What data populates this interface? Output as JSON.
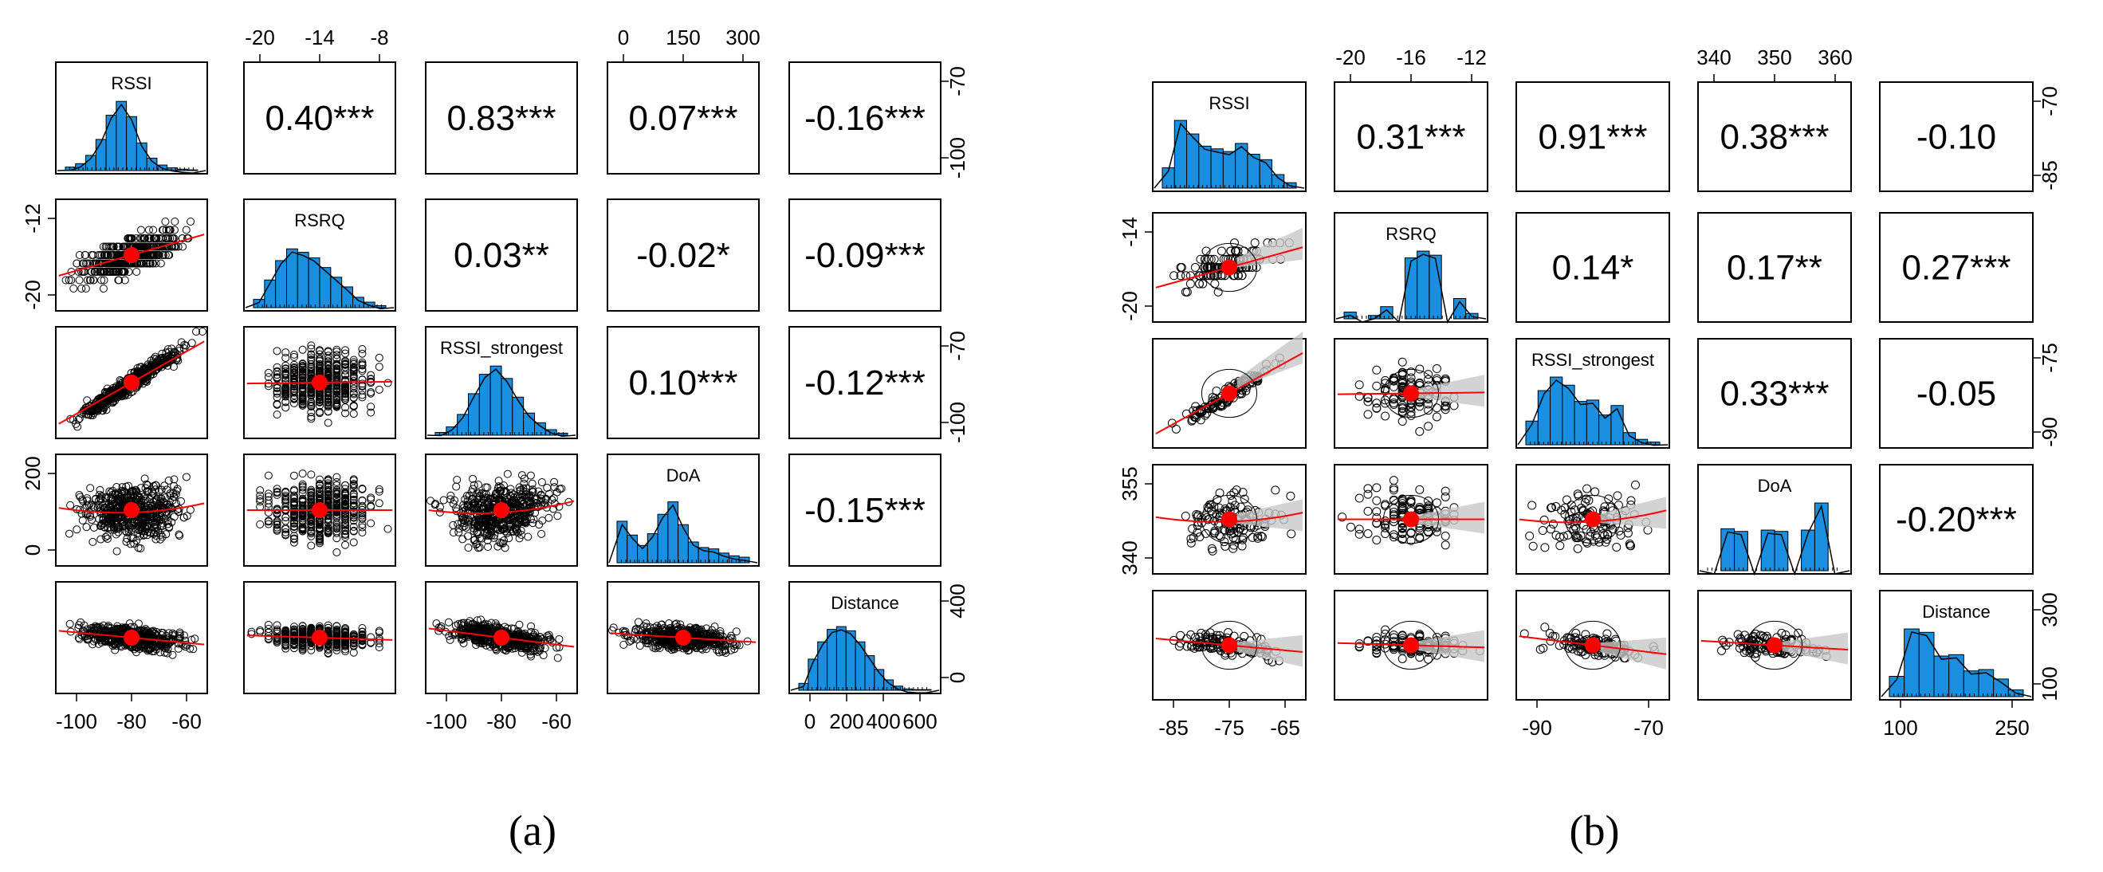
{
  "figures": [
    {
      "label": "(a)",
      "variables": [
        "RSSI",
        "RSRQ",
        "RSSI_strongest",
        "DoA",
        "Distance"
      ],
      "correlations": [
        [
          "0.40***",
          "0.83***",
          "0.07***",
          "-0.16***"
        ],
        [
          "0.03**",
          "-0.02*",
          "-0.09***"
        ],
        [
          "0.10***",
          "-0.12***"
        ],
        [
          "-0.15***"
        ]
      ],
      "axes": {
        "bottom": {
          "RSSI": [
            "-100",
            "-80",
            "-60"
          ],
          "RSSI_strongest": [
            "-100",
            "-80",
            "-60"
          ],
          "Distance": [
            "0",
            "200",
            "400",
            "600"
          ]
        },
        "top": {
          "RSRQ": [
            "-20",
            "-14",
            "-8"
          ],
          "DoA": [
            "0",
            "150",
            "300"
          ]
        },
        "left": {
          "RSRQ": [
            "-20",
            "-12"
          ],
          "DoA": [
            "0",
            "200"
          ]
        },
        "right": {
          "RSSI": [
            "-100",
            "-70"
          ],
          "RSSI_strongest": [
            "-100",
            "-70"
          ],
          "Distance": [
            "0",
            "400"
          ]
        }
      }
    },
    {
      "label": "(b)",
      "variables": [
        "RSSI",
        "RSRQ",
        "RSSI_strongest",
        "DoA",
        "Distance"
      ],
      "correlations": [
        [
          "0.31***",
          "0.91***",
          "0.38***",
          "-0.10"
        ],
        [
          "0.14*",
          "0.17**",
          "0.27***"
        ],
        [
          "0.33***",
          "-0.05"
        ],
        [
          "-0.20***"
        ]
      ],
      "axes": {
        "bottom": {
          "RSSI": [
            "-85",
            "-75",
            "-65"
          ],
          "RSSI_strongest": [
            "-90",
            "-70"
          ],
          "Distance": [
            "100",
            "250"
          ]
        },
        "top": {
          "RSRQ": [
            "-20",
            "-16",
            "-12"
          ],
          "DoA": [
            "340",
            "350",
            "360"
          ]
        },
        "left": {
          "RSRQ": [
            "-20",
            "-14"
          ],
          "DoA": [
            "340",
            "355"
          ]
        },
        "right": {
          "RSSI": [
            "-85",
            "-70"
          ],
          "RSSI_strongest": [
            "-90",
            "-75"
          ],
          "Distance": [
            "100",
            "300"
          ]
        }
      }
    }
  ],
  "colors": {
    "histogram_fill": "#1a8fe0",
    "smoother_line": "#ff0000",
    "centroid_point": "#ff0000",
    "ci_band": "#c8c8c8"
  },
  "chart_data": [
    {
      "type": "scatter",
      "title": "",
      "label": "(a)",
      "matrix_variables": [
        "RSSI",
        "RSRQ",
        "RSSI_strongest",
        "DoA",
        "Distance"
      ],
      "pairwise_correlation_labels": [
        {
          "x": "RSSI",
          "y": "RSRQ",
          "value": "0.40***"
        },
        {
          "x": "RSSI",
          "y": "RSSI_strongest",
          "value": "0.83***"
        },
        {
          "x": "RSSI",
          "y": "DoA",
          "value": "0.07***"
        },
        {
          "x": "RSSI",
          "y": "Distance",
          "value": "-0.16***"
        },
        {
          "x": "RSRQ",
          "y": "RSSI_strongest",
          "value": "0.03**"
        },
        {
          "x": "RSRQ",
          "y": "DoA",
          "value": "-0.02*"
        },
        {
          "x": "RSRQ",
          "y": "Distance",
          "value": "-0.09***"
        },
        {
          "x": "RSSI_strongest",
          "y": "DoA",
          "value": "0.10***"
        },
        {
          "x": "RSSI_strongest",
          "y": "Distance",
          "value": "-0.12***"
        },
        {
          "x": "DoA",
          "y": "Distance",
          "value": "-0.15***"
        }
      ],
      "approx_ranges": {
        "RSSI": [
          -110,
          -55
        ],
        "RSRQ": [
          -20,
          -7
        ],
        "RSSI_strongest": [
          -110,
          -55
        ],
        "DoA": [
          0,
          360
        ],
        "Distance": [
          0,
          700
        ]
      },
      "grid": false
    },
    {
      "type": "scatter",
      "title": "",
      "label": "(b)",
      "matrix_variables": [
        "RSSI",
        "RSRQ",
        "RSSI_strongest",
        "DoA",
        "Distance"
      ],
      "pairwise_correlation_labels": [
        {
          "x": "RSSI",
          "y": "RSRQ",
          "value": "0.31***"
        },
        {
          "x": "RSSI",
          "y": "RSSI_strongest",
          "value": "0.91***"
        },
        {
          "x": "RSSI",
          "y": "DoA",
          "value": "0.38***"
        },
        {
          "x": "RSSI",
          "y": "Distance",
          "value": "-0.10"
        },
        {
          "x": "RSRQ",
          "y": "RSSI_strongest",
          "value": "0.14*"
        },
        {
          "x": "RSRQ",
          "y": "DoA",
          "value": "0.17**"
        },
        {
          "x": "RSRQ",
          "y": "Distance",
          "value": "0.27***"
        },
        {
          "x": "RSSI_strongest",
          "y": "DoA",
          "value": "0.33***"
        },
        {
          "x": "RSSI_strongest",
          "y": "Distance",
          "value": "-0.05"
        },
        {
          "x": "DoA",
          "y": "Distance",
          "value": "-0.20***"
        }
      ],
      "approx_ranges": {
        "RSSI": [
          -90,
          -64
        ],
        "RSRQ": [
          -20,
          -11
        ],
        "RSSI_strongest": [
          -92,
          -62
        ],
        "DoA": [
          338,
          362
        ],
        "Distance": [
          80,
          360
        ]
      },
      "grid": false
    }
  ]
}
